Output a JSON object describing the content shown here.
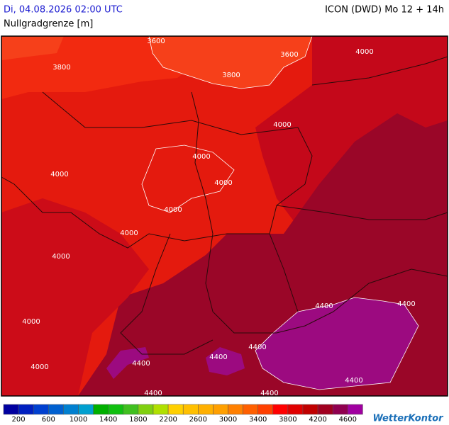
{
  "header": {
    "datetime": "Di, 04.08.2026 02:00 UTC",
    "model": "ICON (DWD) Mo 12 + 14h",
    "title": "Nullgradgrenze [m]"
  },
  "map": {
    "contour_labels": [
      3600,
      3600,
      3800,
      3800,
      4000,
      4000,
      4000,
      4000,
      4000,
      4000,
      4000,
      4000,
      4000,
      4000,
      4400,
      4400,
      4400,
      4400,
      4400,
      4400,
      4400,
      4400
    ]
  },
  "legend": {
    "colors": [
      "#0000a0",
      "#0020c0",
      "#0040d0",
      "#0060d0",
      "#0080d0",
      "#00a0d0",
      "#00b000",
      "#10c010",
      "#40c020",
      "#80d010",
      "#b0e000",
      "#ffd000",
      "#ffc000",
      "#ffb000",
      "#ffa000",
      "#ff8000",
      "#ff6000",
      "#ff4000",
      "#ff0000",
      "#e00000",
      "#c00000",
      "#a00020",
      "#900050",
      "#a000a0"
    ],
    "labels": [
      200,
      600,
      1000,
      1400,
      1800,
      2200,
      2600,
      3000,
      3400,
      3800,
      4200,
      4600
    ]
  },
  "brand": "WetterKontor"
}
